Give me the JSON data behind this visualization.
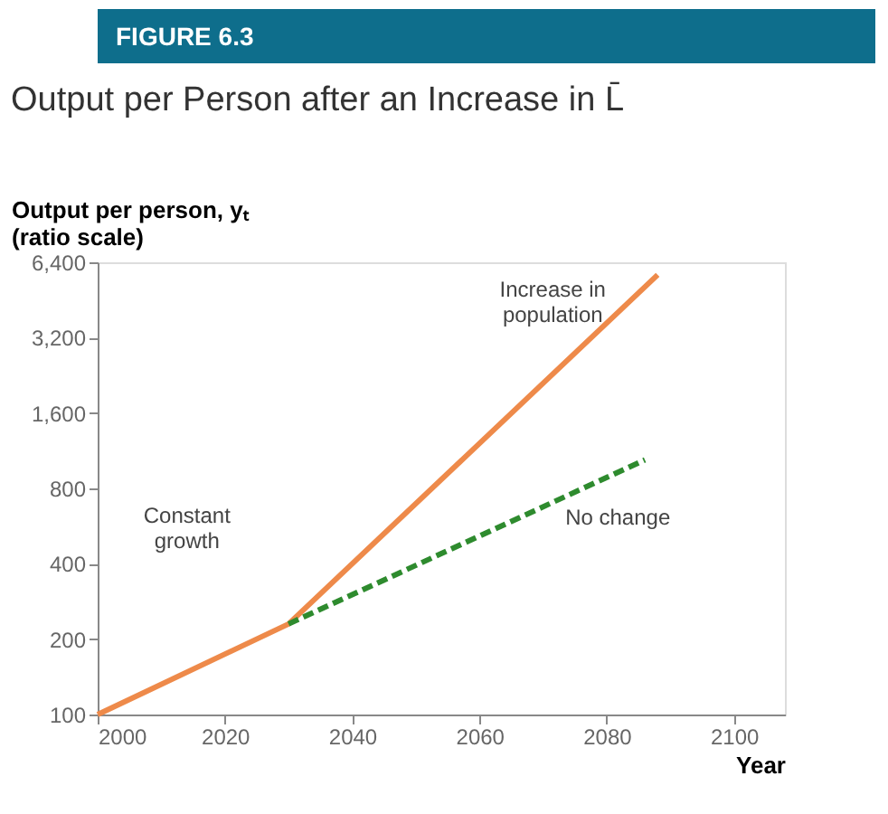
{
  "chart_data": {
    "type": "line",
    "title": "FIGURE 6.3",
    "subtitle": "Output per Person after an Increase in L̄",
    "ylabel": "Output per person, yₜ\n(ratio scale)",
    "xlabel": "Year",
    "log": "y",
    "xlim": [
      2000,
      2108
    ],
    "xticks": [
      2000,
      2020,
      2040,
      2060,
      2080,
      2100
    ],
    "ylim": [
      100,
      6400
    ],
    "yticks": [
      100,
      200,
      400,
      800,
      {
        "value": 1600,
        "label": "1,600"
      },
      {
        "value": 3200,
        "label": "3,200"
      },
      {
        "value": 6400,
        "label": "6,400"
      }
    ],
    "grid": false,
    "legend": false,
    "marker": "none",
    "series": [
      {
        "name": "Increase in population",
        "color": "#ee8a4a",
        "line_style": "solid",
        "x": [
          2000,
          2030,
          2088
        ],
        "values": [
          100,
          230,
          5700
        ]
      },
      {
        "name": "No change",
        "color": "#2e8b2e",
        "line_style": "dashed",
        "x": [
          2030,
          2086
        ],
        "values": [
          230,
          1040
        ]
      }
    ],
    "annotations": [
      "Constant growth"
    ]
  }
}
